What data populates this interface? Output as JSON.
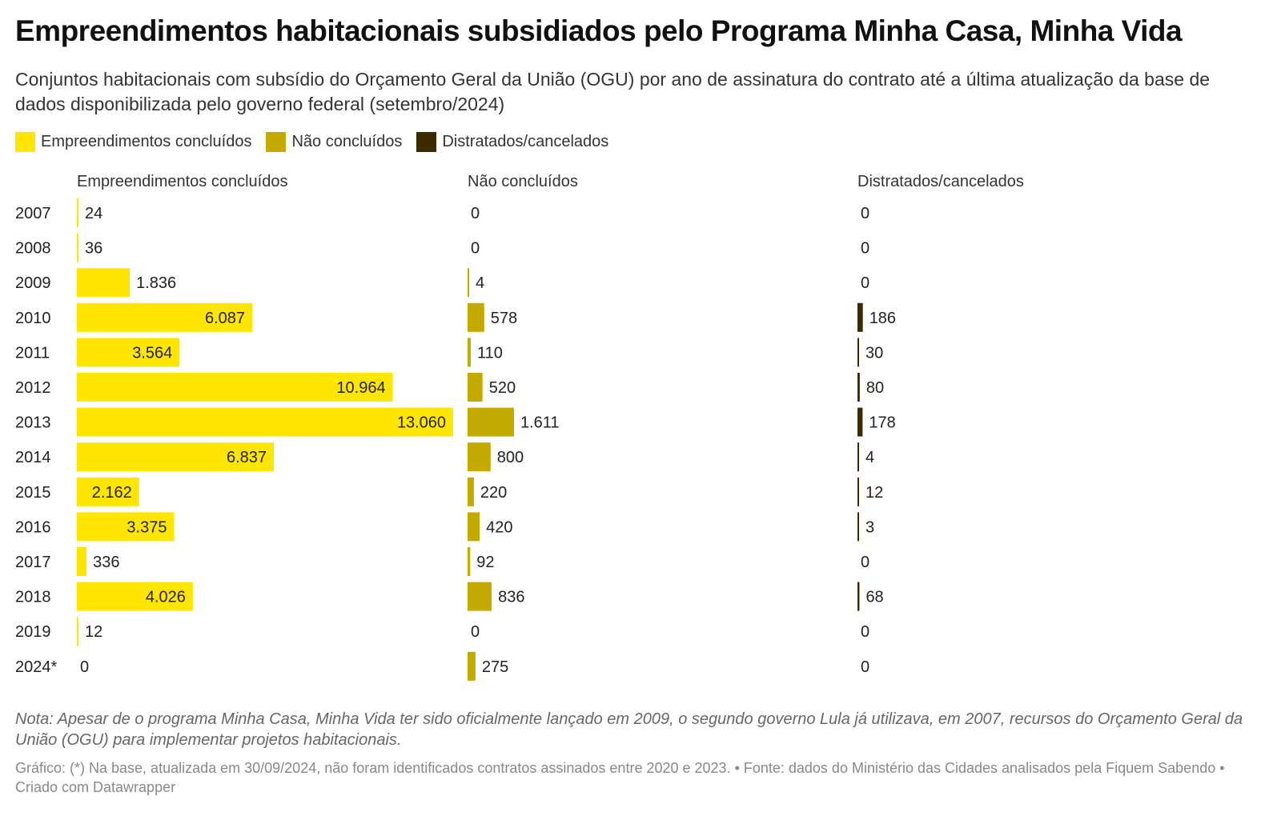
{
  "title": "Empreendimentos habitacionais subsidiados pelo Programa Minha Casa, Minha Vida",
  "subtitle": "Conjuntos habitacionais com subsídio do Orçamento Geral da União (OGU) por ano de assinatura do contrato até a última atualização da base de dados disponibilizada pelo governo federal (setembro/2024)",
  "note": "Nota: Apesar de o programa Minha Casa, Minha Vida ter sido oficialmente lançado em 2009, o segundo governo Lula já utilizava, em 2007, recursos do Orçamento Geral da União (OGU) para implementar projetos habitacionais.",
  "footer": "Gráfico: (*) Na base, atualizada em 30/09/2024, não foram identificados contratos assinados entre 2020 e 2023. • Fonte: dados do Ministério das Cidades analisados pela Fiquem Sabendo • Criado com Datawrapper",
  "chart_data": {
    "type": "bar",
    "categories": [
      "2007",
      "2008",
      "2009",
      "2010",
      "2011",
      "2012",
      "2013",
      "2014",
      "2015",
      "2016",
      "2017",
      "2018",
      "2019",
      "2024*"
    ],
    "series": [
      {
        "name": "Empreendimentos concluídos",
        "color": "#FFE600",
        "values": [
          24,
          36,
          1836,
          6087,
          3564,
          10964,
          13060,
          6837,
          2162,
          3375,
          336,
          4026,
          12,
          0
        ]
      },
      {
        "name": "Não concluídos",
        "color": "#C4AA00",
        "values": [
          0,
          0,
          4,
          578,
          110,
          520,
          1611,
          800,
          220,
          420,
          92,
          836,
          0,
          275
        ]
      },
      {
        "name": "Distratados/cancelados",
        "color": "#3D2B00",
        "values": [
          0,
          0,
          0,
          186,
          30,
          80,
          178,
          4,
          12,
          3,
          0,
          68,
          0,
          0
        ]
      }
    ],
    "xlim": [
      0,
      13060
    ],
    "legend": "top-left"
  }
}
